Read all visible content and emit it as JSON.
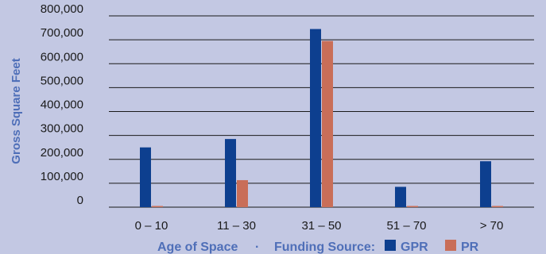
{
  "chart_data": {
    "type": "bar",
    "title": "",
    "xlabel": "Age of Space",
    "ylabel": "Gross Square Feet",
    "categories": [
      "0 – 10",
      "11 – 30",
      "31 – 50",
      "51 – 70",
      "> 70"
    ],
    "series": [
      {
        "name": "GPR",
        "values": [
          250000,
          285000,
          745000,
          85000,
          192000
        ]
      },
      {
        "name": "PR",
        "values": [
          5000,
          113000,
          695000,
          5000,
          5000
        ]
      }
    ],
    "ylim": [
      0,
      800000
    ],
    "yticks": [
      "0",
      "100,000",
      "200,000",
      "300,000",
      "400,000",
      "500,000",
      "600,000",
      "700,000",
      "800,000"
    ],
    "yticks_values": [
      0,
      100000,
      200000,
      300000,
      400000,
      500000,
      600000,
      700000,
      800000
    ],
    "grid": true,
    "legend": {
      "title": "Funding Source:",
      "separator": "·",
      "placement": "bottom"
    },
    "colors": {
      "GPR": "#0d3f8f",
      "PR": "#c96e58",
      "grid": "#1a1a1a",
      "label": "#4f6fb8"
    }
  }
}
